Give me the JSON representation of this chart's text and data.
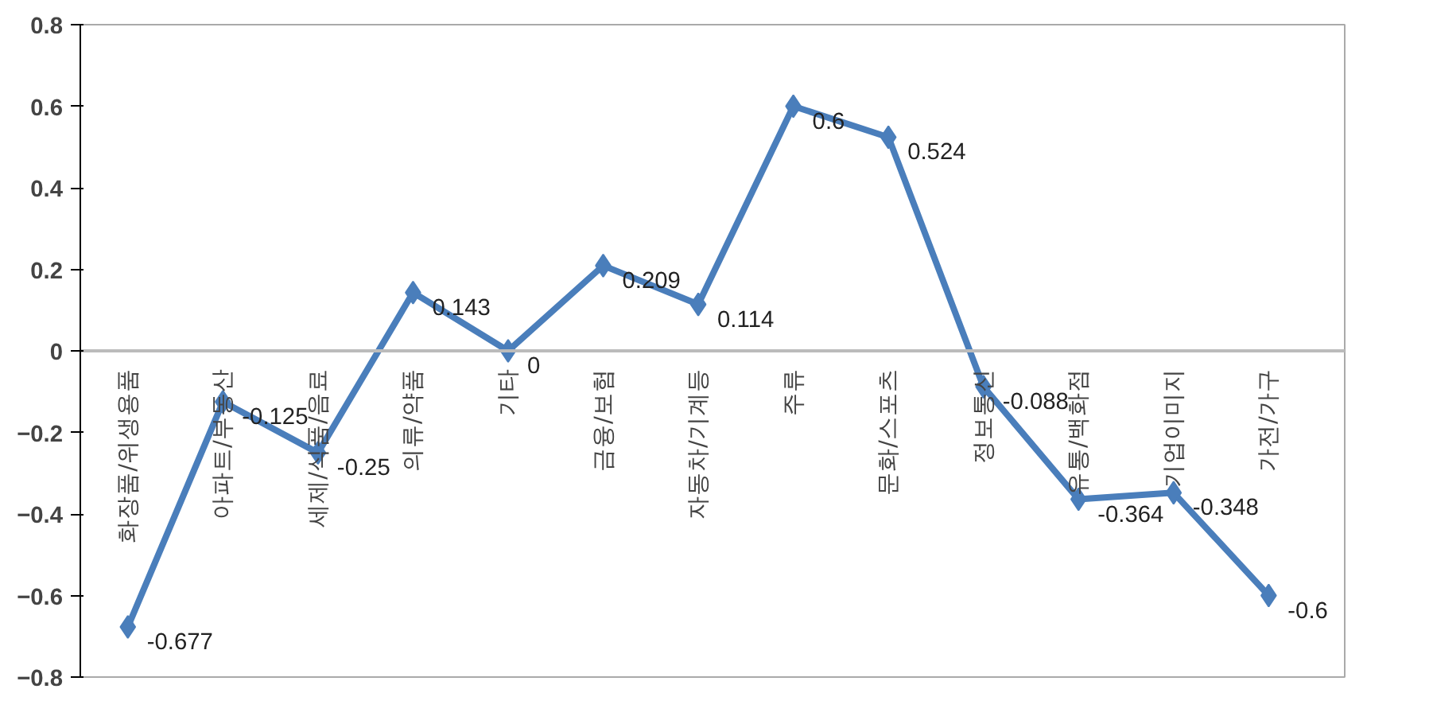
{
  "chart_data": {
    "type": "line",
    "categories": [
      "화장품/위생용품",
      "아파트/부동산",
      "세제/식품/음료",
      "의류/약품",
      "기타",
      "금융/보험",
      "자동차/기계등",
      "주류",
      "문화/스포츠",
      "정보통신",
      "유통/백화점",
      "기업이미지",
      "가전/가구"
    ],
    "series": [
      {
        "color": "#4a7ebb",
        "values": [
          -0.677,
          -0.125,
          -0.25,
          0.143,
          0,
          0.209,
          0.114,
          0.6,
          0.524,
          -0.088,
          -0.364,
          -0.348,
          -0.6
        ]
      }
    ],
    "ylim": [
      -0.8,
      0.8
    ],
    "yticks": [
      -0.8,
      -0.6,
      -0.4,
      -0.2,
      0,
      0.2,
      0.4,
      0.6,
      0.8
    ],
    "data_labels": true,
    "marker": "diamond",
    "line_style": "solid",
    "grid": false
  }
}
